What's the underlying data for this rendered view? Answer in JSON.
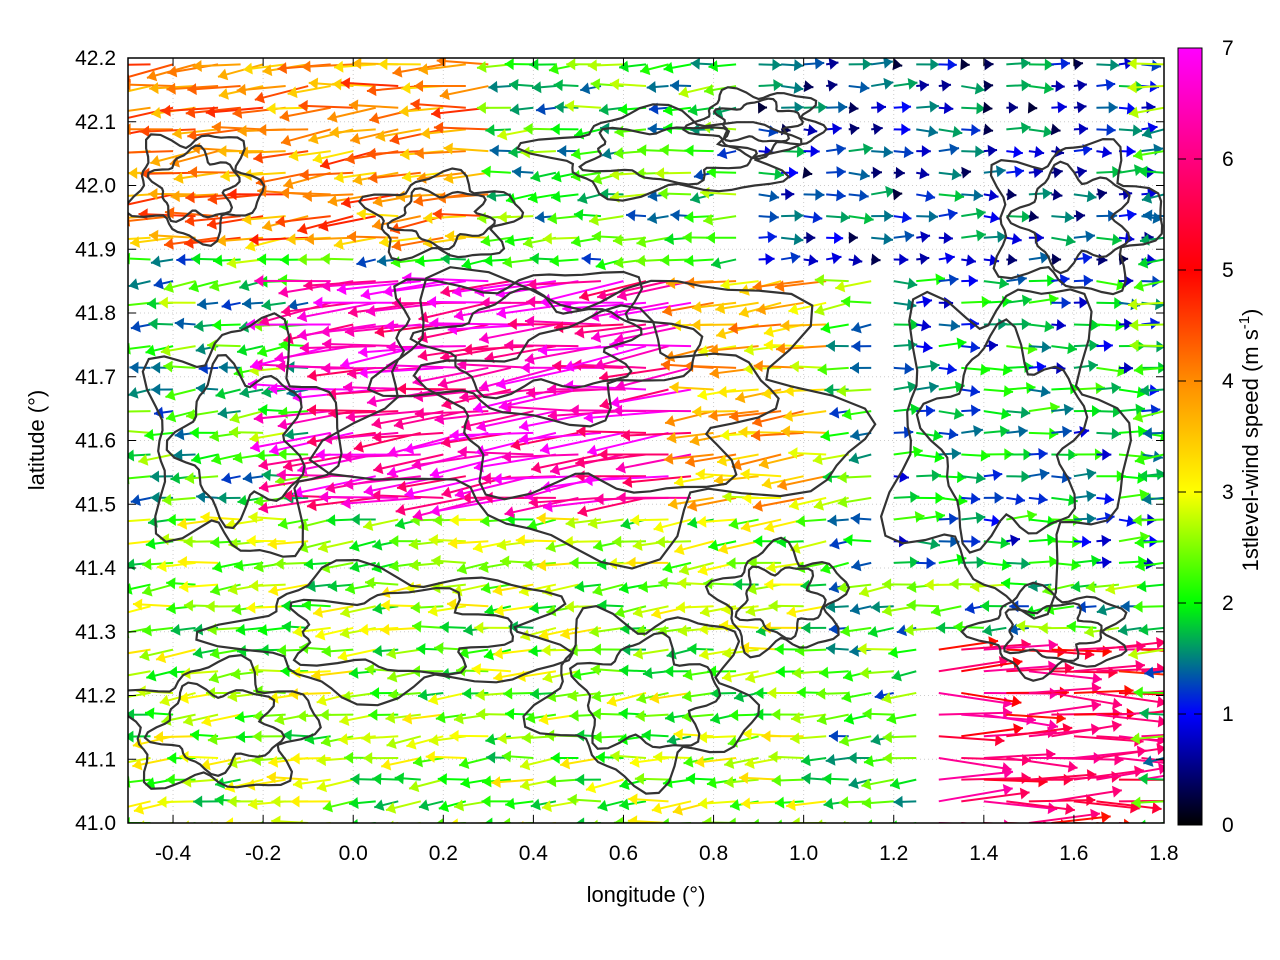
{
  "chart_data": {
    "type": "vector-field",
    "xlabel": "longitude (°)",
    "ylabel": "latitude (°)",
    "colorbar_label": "1stlevel-wind speed (m s-1)",
    "colorbar_label_parts": {
      "main": "1stlevel-wind speed (m s",
      "exp": "-1",
      "close": ")"
    },
    "xlim": [
      -0.5,
      1.8
    ],
    "ylim": [
      41.0,
      42.2
    ],
    "cblim": [
      0,
      7
    ],
    "x_ticks": [
      "-0.4",
      "-0.2",
      "0.0",
      "0.2",
      "0.4",
      "0.6",
      "0.8",
      "1.0",
      "1.2",
      "1.4",
      "1.6",
      "1.8"
    ],
    "x_tick_values": [
      -0.4,
      -0.2,
      0.0,
      0.2,
      0.4,
      0.6,
      0.8,
      1.0,
      1.2,
      1.4,
      1.6,
      1.8
    ],
    "y_ticks": [
      "41.0",
      "41.1",
      "41.2",
      "41.3",
      "41.4",
      "41.5",
      "41.6",
      "41.7",
      "41.8",
      "41.9",
      "42.0",
      "42.1",
      "42.2"
    ],
    "y_tick_values": [
      41.0,
      41.1,
      41.2,
      41.3,
      41.4,
      41.5,
      41.6,
      41.7,
      41.8,
      41.9,
      42.0,
      42.1,
      42.2
    ],
    "cb_ticks": [
      "0",
      "1",
      "2",
      "3",
      "4",
      "5",
      "6",
      "7"
    ],
    "cb_tick_values": [
      0,
      1,
      2,
      3,
      4,
      5,
      6,
      7
    ],
    "colormap": [
      "#000000",
      "#0000ff",
      "#00ff00",
      "#ffff00",
      "#ff8c00",
      "#ff0000",
      "#ff00ff"
    ],
    "grid": true,
    "contour_color": "#333333",
    "wind_regions": [
      {
        "lon": [
          -0.5,
          0.3
        ],
        "lat": [
          41.9,
          42.2
        ],
        "speed": 4.0,
        "dir": "westward"
      },
      {
        "lon": [
          0.3,
          0.9
        ],
        "lat": [
          41.9,
          42.2
        ],
        "speed": 2.0,
        "dir": "westward"
      },
      {
        "lon": [
          0.9,
          1.8
        ],
        "lat": [
          41.85,
          42.2
        ],
        "speed": 1.0,
        "dir": "eastward"
      },
      {
        "lon": [
          -0.1,
          0.8
        ],
        "lat": [
          41.5,
          41.85
        ],
        "speed": 6.5,
        "dir": "westward"
      },
      {
        "lon": [
          0.8,
          1.1
        ],
        "lat": [
          41.5,
          41.85
        ],
        "speed": 3.5,
        "dir": "westward"
      },
      {
        "lon": [
          1.2,
          1.8
        ],
        "lat": [
          41.4,
          41.85
        ],
        "speed": 1.5,
        "dir": "eastward"
      },
      {
        "lon": [
          -0.5,
          1.1
        ],
        "lat": [
          41.0,
          41.5
        ],
        "speed": 2.5,
        "dir": "westward"
      },
      {
        "lon": [
          1.3,
          1.8
        ],
        "lat": [
          41.0,
          41.3
        ],
        "speed": 5.5,
        "dir": "eastward"
      }
    ]
  }
}
